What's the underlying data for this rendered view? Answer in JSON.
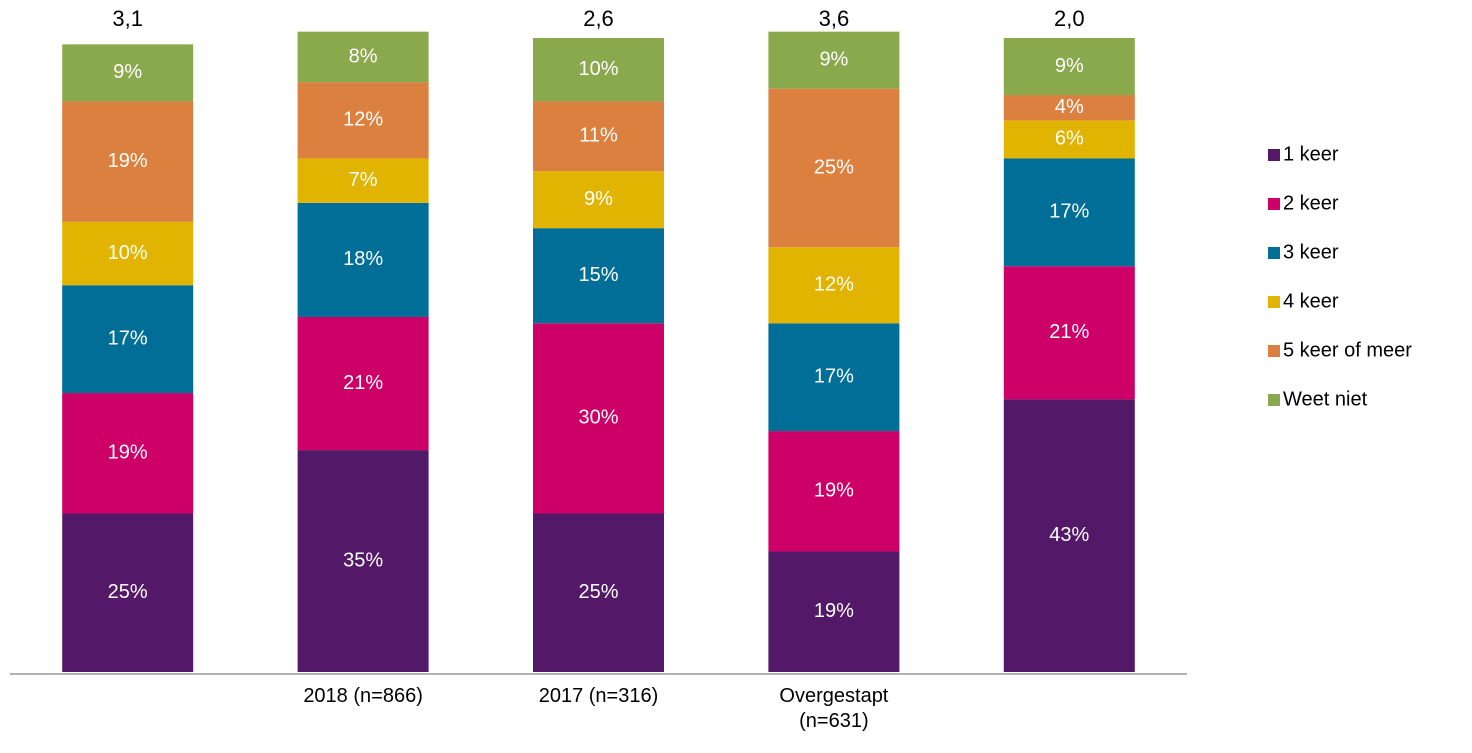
{
  "chart_data": {
    "type": "stacked_bar",
    "categories": [
      null,
      "2018 (n=866)",
      "2017 (n=316)",
      "Overgestapt\n(n=631)",
      null
    ],
    "top_labels": [
      "3,1",
      null,
      "2,6",
      "3,6",
      "2,0"
    ],
    "series": [
      {
        "name": "1 keer",
        "color": "#541868",
        "values": [
          25,
          35,
          25,
          19,
          43
        ],
        "value_labels": [
          "25%",
          "35%",
          "25%",
          "19%",
          "43%"
        ]
      },
      {
        "name": "2 keer",
        "color": "#cc0066",
        "values": [
          19,
          21,
          30,
          19,
          21
        ],
        "value_labels": [
          "19%",
          "21%",
          "30%",
          "19%",
          "21%"
        ]
      },
      {
        "name": "3 keer",
        "color": "#006e96",
        "values": [
          17,
          18,
          15,
          17,
          17
        ],
        "value_labels": [
          "17%",
          "18%",
          "15%",
          "17%",
          "17%"
        ]
      },
      {
        "name": "4 keer",
        "color": "#e0b400",
        "values": [
          10,
          7,
          9,
          12,
          6
        ],
        "value_labels": [
          "10%",
          "7%",
          "9%",
          "12%",
          "6%"
        ]
      },
      {
        "name": "5 keer of meer",
        "color": "#dc8040",
        "values": [
          19,
          12,
          11,
          25,
          4
        ],
        "value_labels": [
          "19%",
          "12%",
          "11%",
          "25%",
          "4%"
        ]
      },
      {
        "name": "Weet niet",
        "color": "#8aa84c",
        "values": [
          9,
          8,
          10,
          9,
          9
        ],
        "value_labels": [
          "9%",
          "8%",
          "10%",
          "9%",
          "9%"
        ]
      }
    ],
    "ylim": [
      0,
      100
    ],
    "legend": "right"
  }
}
